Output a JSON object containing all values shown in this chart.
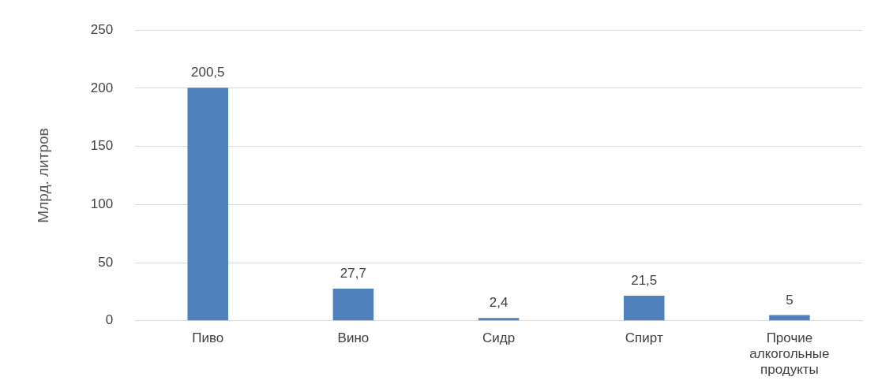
{
  "chart_data": {
    "type": "bar",
    "ylabel": "Млрд. литров",
    "categories": [
      "Пиво",
      "Вино",
      "Сидр",
      "Спирт",
      "Прочие алкогольные продукты"
    ],
    "values": [
      200.5,
      27.7,
      2.4,
      21.5,
      5
    ],
    "value_labels": [
      "200,5",
      "27,7",
      "2,4",
      "21,5",
      "5"
    ],
    "color": "#4f81bd",
    "ylim": [
      0,
      250
    ],
    "yticks": [
      0,
      50,
      100,
      150,
      200,
      250
    ],
    "grid": "y",
    "legend": false
  }
}
